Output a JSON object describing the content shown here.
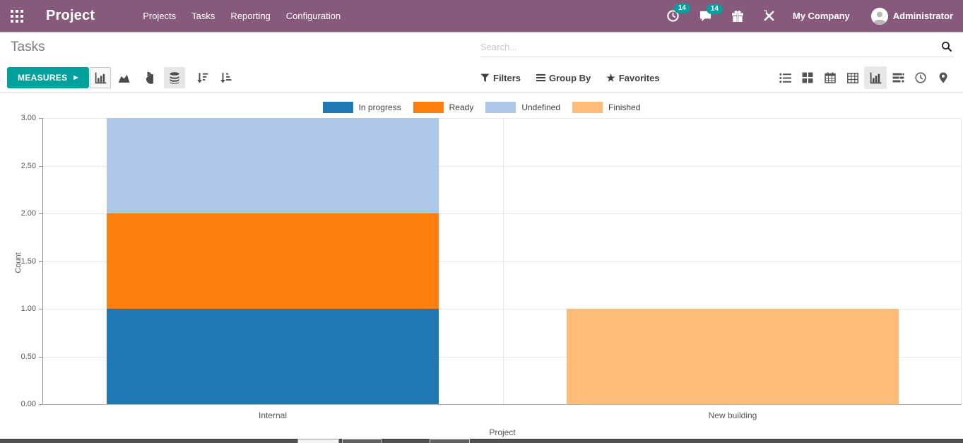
{
  "nav": {
    "app_title": "Project",
    "menu": [
      {
        "label": "Projects"
      },
      {
        "label": "Tasks"
      },
      {
        "label": "Reporting"
      },
      {
        "label": "Configuration"
      }
    ],
    "activity_badge": "14",
    "message_badge": "14",
    "company": "My Company",
    "user": "Administrator"
  },
  "control_panel": {
    "title": "Tasks",
    "search_placeholder": "Search...",
    "measures_label": "MEASURES",
    "filters_label": "Filters",
    "group_by_label": "Group By",
    "favorites_label": "Favorites"
  },
  "icons": {
    "measures_caret": "▶",
    "favorites_star": "★"
  },
  "colors": {
    "topbar": "#875a7b",
    "accent_teal": "#00a09d",
    "series_in_progress": "#1f77b4",
    "series_ready": "#ff7f0e",
    "series_undefined": "#aec7e8",
    "series_finished": "#ffbb78"
  },
  "chart_data": {
    "type": "bar",
    "stacked": true,
    "title": "",
    "categories": [
      "Internal",
      "New building"
    ],
    "series": [
      {
        "name": "In progress",
        "color": "#1f77b4",
        "values": [
          1,
          0
        ]
      },
      {
        "name": "Ready",
        "color": "#ff7f0e",
        "values": [
          1,
          0
        ]
      },
      {
        "name": "Undefined",
        "color": "#aec7e8",
        "values": [
          1,
          0
        ]
      },
      {
        "name": "Finished",
        "color": "#ffbb78",
        "values": [
          0,
          1
        ]
      }
    ],
    "xlabel": "Project",
    "ylabel": "Count",
    "ylim": [
      0,
      3
    ],
    "ytick_step": 0.5,
    "ytick_labels": [
      "3.00",
      "2.50",
      "2.00",
      "1.50",
      "1.00",
      "0.50",
      "0.00"
    ],
    "grid": true,
    "legend_position": "top-center"
  }
}
